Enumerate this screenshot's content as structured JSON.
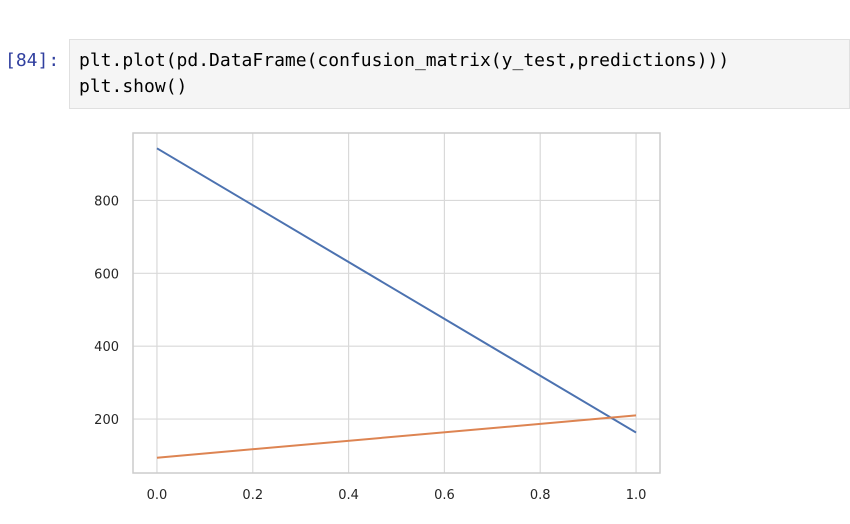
{
  "cell": {
    "prompt": "[84]:",
    "code_lines": [
      "plt.plot(pd.DataFrame(confusion_matrix(y_test,predictions)))",
      "plt.show()"
    ]
  },
  "chart_data": {
    "type": "line",
    "x": [
      0.0,
      1.0
    ],
    "series": [
      {
        "values": [
          943,
          163
        ],
        "color": "#4c72b0"
      },
      {
        "values": [
          94,
          210
        ],
        "color": "#dd8452"
      }
    ],
    "xlim": [
      -0.05,
      1.05
    ],
    "ylim": [
      52,
      985
    ],
    "xticks": [
      0.0,
      0.2,
      0.4,
      0.6,
      0.8,
      1.0
    ],
    "xtick_labels": [
      "0.0",
      "0.2",
      "0.4",
      "0.6",
      "0.8",
      "1.0"
    ],
    "yticks": [
      200,
      400,
      600,
      800
    ],
    "ytick_labels": [
      "200",
      "400",
      "600",
      "800"
    ],
    "grid": true,
    "style": "seaborn-whitegrid"
  }
}
